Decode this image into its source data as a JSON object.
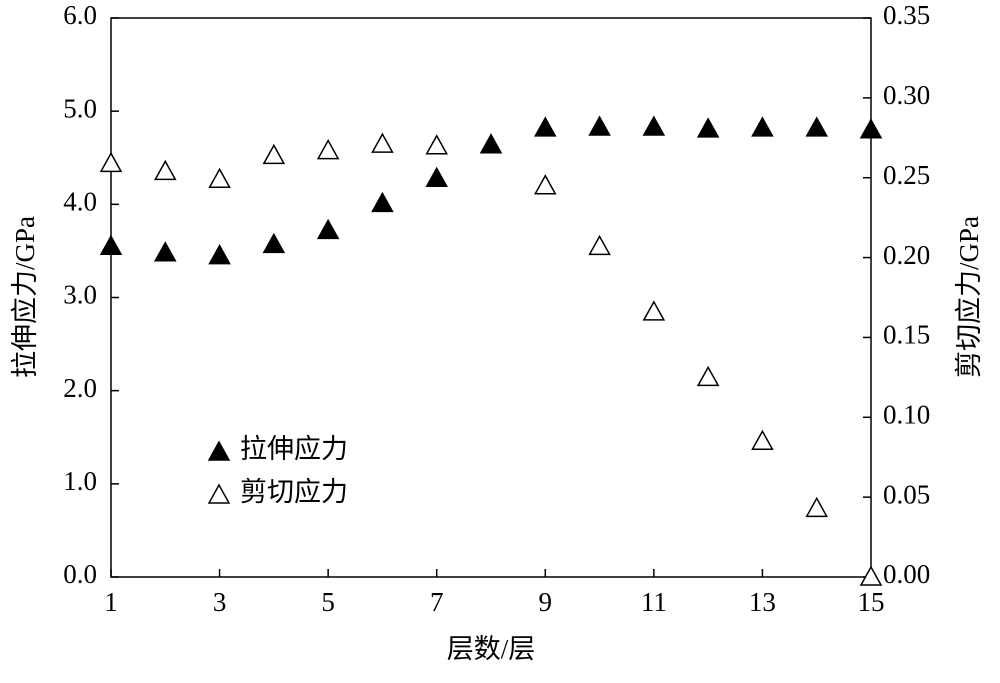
{
  "chart_data": {
    "type": "scatter",
    "x_label": "层数/层",
    "y_label": "拉伸应力/GPa",
    "y2_label": "剪切应力/GPa",
    "x": [
      1,
      2,
      3,
      4,
      5,
      6,
      7,
      8,
      9,
      10,
      11,
      12,
      13,
      14,
      15
    ],
    "series": [
      {
        "name": "拉伸应力",
        "color": "#000000",
        "marker": "filled-triangle",
        "values": [
          3.55,
          3.48,
          3.45,
          3.57,
          3.72,
          4.01,
          4.28,
          4.64,
          4.82,
          4.83,
          4.83,
          4.81,
          4.82,
          4.82,
          4.8
        ]
      },
      {
        "name": "剪切应力",
        "color": "#000000",
        "marker": "open-triangle",
        "axis": "y2",
        "values": [
          0.259,
          0.254,
          0.249,
          0.264,
          0.267,
          0.271,
          0.27,
          null,
          0.245,
          0.207,
          0.166,
          0.125,
          0.085,
          0.043,
          0.0
        ]
      }
    ],
    "xlim": [
      1,
      15
    ],
    "xticks": [
      1,
      3,
      5,
      7,
      9,
      11,
      13,
      15
    ],
    "ylim": [
      0,
      6
    ],
    "yticks": [
      {
        "value": 0,
        "label": "0.0"
      },
      {
        "value": 1,
        "label": "1.0"
      },
      {
        "value": 2,
        "label": "2.0"
      },
      {
        "value": 3,
        "label": "3.0"
      },
      {
        "value": 4,
        "label": "4.0"
      },
      {
        "value": 5,
        "label": "5.0"
      },
      {
        "value": 6,
        "label": "6.0"
      }
    ],
    "y2lim": [
      0,
      0.35
    ],
    "y2ticks": [
      {
        "value": 0,
        "label": "0.00"
      },
      {
        "value": 0.05,
        "label": "0.05"
      },
      {
        "value": 0.1,
        "label": "0.10"
      },
      {
        "value": 0.15,
        "label": "0.15"
      },
      {
        "value": 0.2,
        "label": "0.20"
      },
      {
        "value": 0.25,
        "label": "0.25"
      },
      {
        "value": 0.3,
        "label": "0.30"
      },
      {
        "value": 0.35,
        "label": "0.35"
      }
    ],
    "grid": false
  }
}
